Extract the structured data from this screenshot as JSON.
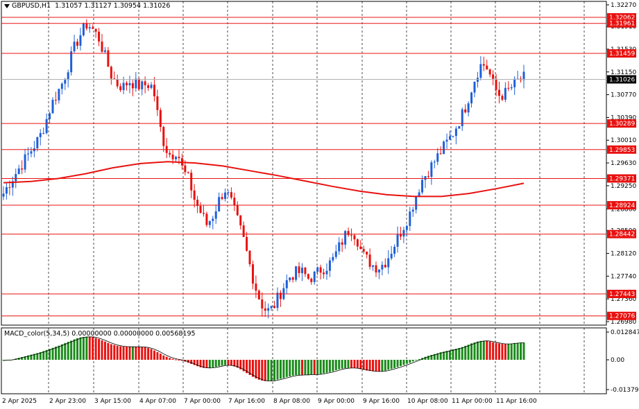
{
  "header": {
    "symbol": "GBPUSD,H1",
    "ohlc": "1.31057 1.31127 1.30954 1.31026"
  },
  "colors": {
    "bull": "#1e5fd8",
    "bear": "#e8110f",
    "hline": "#e8110f",
    "ma": "#e8110f",
    "macd_pos_up": "#1a8b1a",
    "macd_neg_down": "#e8110f",
    "grid": "#000000",
    "current": "#000000"
  },
  "price_axis": {
    "min": 1.2698,
    "max": 1.3227,
    "ticks": [
      "1.32270",
      "1.31910",
      "1.31530",
      "1.31150",
      "1.30770",
      "1.30390",
      "1.30010",
      "1.29630",
      "1.29250",
      "1.28860",
      "1.28500",
      "1.28120",
      "1.27740",
      "1.27360",
      "1.26980"
    ]
  },
  "hlines": [
    "1.32062",
    "1.31961",
    "1.31459",
    "1.30289",
    "1.29853",
    "1.29371",
    "1.28924",
    "1.28442",
    "1.27443",
    "1.27076"
  ],
  "current_price": "1.31026",
  "macd": {
    "title": "MACD_color(5,34,5) 0.00000000 0.00000000 0.00568195",
    "ticks": [
      "0.0128475",
      "0.00",
      "-0.0137932"
    ],
    "min": -0.0137932,
    "max": 0.0128475
  },
  "time_axis": [
    "2 Apr 2025",
    "2 Apr 23:00",
    "3 Apr 15:00",
    "4 Apr 07:00",
    "7 Apr 00:00",
    "7 Apr 16:00",
    "8 Apr 08:00",
    "9 Apr 00:00",
    "9 Apr 16:00",
    "10 Apr 08:00",
    "11 Apr 00:00",
    "11 Apr 16:00"
  ],
  "chart_data": {
    "type": "candlestick",
    "symbol": "GBPUSD",
    "timeframe": "H1",
    "anchors_close": [
      1.2912,
      1.293,
      1.2945,
      1.296,
      1.2975,
      1.299,
      1.3005,
      1.303,
      1.306,
      1.308,
      1.31,
      1.313,
      1.316,
      1.318,
      1.3196,
      1.3185,
      1.317,
      1.314,
      1.311,
      1.3095,
      1.309,
      1.31,
      1.3095,
      1.309,
      1.3095,
      1.309,
      1.303,
      1.299,
      1.2975,
      1.2985,
      1.295,
      1.2935,
      1.29,
      1.288,
      1.286,
      1.2875,
      1.29,
      1.292,
      1.29,
      1.287,
      1.284,
      1.28,
      1.276,
      1.273,
      1.2715,
      1.272,
      1.274,
      1.276,
      1.2775,
      1.278,
      1.278,
      1.277,
      1.2775,
      1.2785,
      1.279,
      1.28,
      1.282,
      1.284,
      1.2855,
      1.284,
      1.281,
      1.28,
      1.279,
      1.279,
      1.28,
      1.282,
      1.284,
      1.286,
      1.288,
      1.291,
      1.2935,
      1.295,
      1.2965,
      1.298,
      1.2995,
      1.301,
      1.303,
      1.305,
      1.308,
      1.311,
      1.313,
      1.312,
      1.309,
      1.3075,
      1.308,
      1.309,
      1.31,
      1.3105
    ],
    "moving_average_points": [
      1.293,
      1.2932,
      1.2937,
      1.2945,
      1.2955,
      1.2962,
      1.2965,
      1.2963,
      1.2958,
      1.295,
      1.2942,
      1.2933,
      1.2924,
      1.2916,
      1.291,
      1.2907,
      1.2907,
      1.2912,
      1.292,
      1.2929
    ]
  }
}
